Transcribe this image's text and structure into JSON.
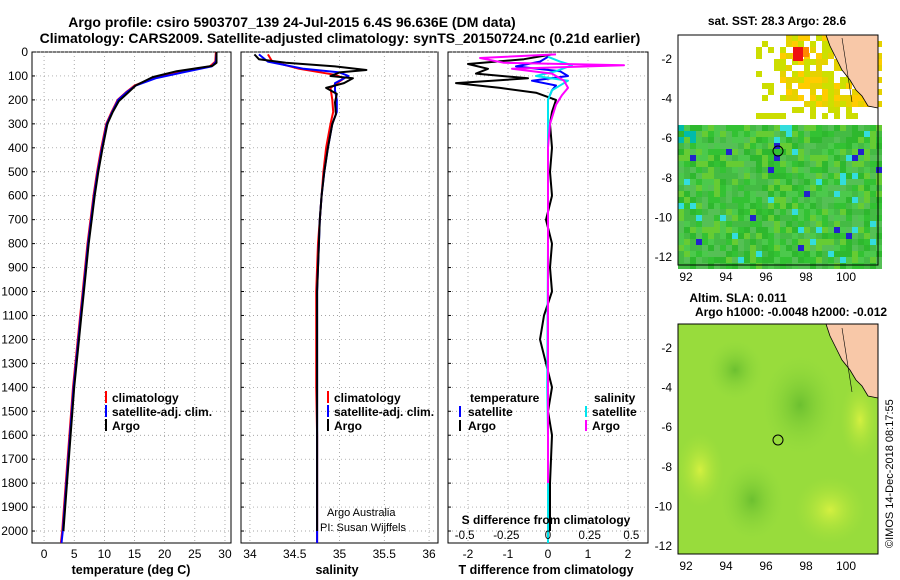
{
  "header": {
    "line1": "Argo profile: csiro 5903707_139 24-Jul-2015 6.4S 96.636E (DM data)",
    "line2": "Climatology: CARS2009. Satellite-adjusted climatology: synTS_20150724.nc (0.21d earlier)"
  },
  "colors": {
    "climatology": "#ff0000",
    "satellite": "#0000ff",
    "argo": "#000000",
    "sat_salinity": "#00e5ee",
    "argo_salinity": "#ff00ff"
  },
  "depth_axis": {
    "ticks": [
      "0",
      "100",
      "200",
      "300",
      "400",
      "500",
      "600",
      "700",
      "800",
      "900",
      "1000",
      "1100",
      "1200",
      "1300",
      "1400",
      "1500",
      "1600",
      "1700",
      "1800",
      "1900",
      "2000"
    ],
    "ylim": [
      0,
      2050
    ]
  },
  "panels": {
    "temperature": {
      "xlabel": "temperature (deg C)",
      "xticks": [
        "0",
        "5",
        "10",
        "15",
        "20",
        "25",
        "30"
      ],
      "legend": [
        "climatology",
        "satellite-adj. clim.",
        "Argo"
      ]
    },
    "salinity": {
      "xlabel": "salinity",
      "xticks": [
        "34",
        "34.5",
        "35",
        "35.5",
        "36"
      ],
      "legend": [
        "climatology",
        "satellite-adj. clim.",
        "Argo"
      ],
      "credit1": "Argo Australia",
      "credit2": "PI: Susan Wijffels"
    },
    "difference": {
      "xlabel": "T difference from climatology",
      "xticks": [
        "-2",
        "-1",
        "0",
        "1",
        "2"
      ],
      "s_caption": "S difference from climatology",
      "s_ticks": [
        "-0.5",
        "-0.25",
        "0",
        "0.25",
        "0.5"
      ],
      "legend_t_title": "temperature",
      "legend_s_title": "salinity",
      "legend_satellite": "satellite",
      "legend_argo": "Argo"
    }
  },
  "maps": {
    "sst_title": "sat. SST: 28.3 Argo: 28.6",
    "sla_title1": "Altim. SLA: 0.011",
    "sla_title2": "Argo h1000: -0.0048 h2000: -0.012",
    "xticks": [
      "92",
      "94",
      "96",
      "98",
      "100"
    ],
    "yticks": [
      "-2",
      "-4",
      "-6",
      "-8",
      "-10",
      "-12"
    ],
    "footer": "©IMOS 14-Dec-2018 08:17:55"
  },
  "chart_data": [
    {
      "type": "line",
      "title": "",
      "xlabel": "temperature (deg C)",
      "ylabel": "",
      "xlim": [
        -2,
        31
      ],
      "ylim": [
        0,
        2050
      ],
      "y_inverted": true,
      "series": [
        {
          "name": "climatology",
          "color": "#ff0000",
          "points": [
            [
              28.5,
              0
            ],
            [
              28.4,
              40
            ],
            [
              27.5,
              60
            ],
            [
              22,
              85
            ],
            [
              18,
              110
            ],
            [
              15,
              140
            ],
            [
              13.5,
              170
            ],
            [
              12.2,
              200
            ],
            [
              11.2,
              250
            ],
            [
              10.3,
              300
            ],
            [
              9.5,
              400
            ],
            [
              8.8,
              500
            ],
            [
              8.2,
              600
            ],
            [
              7.7,
              700
            ],
            [
              7.2,
              800
            ],
            [
              6.8,
              900
            ],
            [
              6.4,
              1000
            ],
            [
              6.0,
              1100
            ],
            [
              5.6,
              1200
            ],
            [
              5.2,
              1300
            ],
            [
              4.8,
              1400
            ],
            [
              4.5,
              1500
            ],
            [
              4.2,
              1600
            ],
            [
              3.9,
              1700
            ],
            [
              3.6,
              1800
            ],
            [
              3.3,
              1900
            ],
            [
              3.0,
              2000
            ],
            [
              2.8,
              2050
            ]
          ]
        },
        {
          "name": "satellite-adj. clim.",
          "color": "#0000ff",
          "points": [
            [
              28.6,
              0
            ],
            [
              28.5,
              40
            ],
            [
              27.8,
              60
            ],
            [
              23,
              85
            ],
            [
              18.5,
              110
            ],
            [
              15.2,
              140
            ],
            [
              13.6,
              170
            ],
            [
              12.3,
              200
            ],
            [
              11.3,
              250
            ],
            [
              10.4,
              300
            ],
            [
              9.6,
              400
            ],
            [
              8.9,
              500
            ],
            [
              8.3,
              600
            ],
            [
              7.8,
              700
            ],
            [
              7.3,
              800
            ],
            [
              6.9,
              900
            ],
            [
              6.5,
              1000
            ],
            [
              6.1,
              1100
            ],
            [
              5.7,
              1200
            ],
            [
              5.3,
              1300
            ],
            [
              4.9,
              1400
            ],
            [
              4.6,
              1500
            ],
            [
              4.3,
              1600
            ],
            [
              4.0,
              1700
            ],
            [
              3.7,
              1800
            ],
            [
              3.4,
              1900
            ],
            [
              3.1,
              2000
            ],
            [
              2.9,
              2050
            ]
          ]
        },
        {
          "name": "Argo",
          "color": "#000000",
          "points": [
            [
              28.6,
              0
            ],
            [
              28.6,
              45
            ],
            [
              27.9,
              58
            ],
            [
              22,
              80
            ],
            [
              18,
              105
            ],
            [
              15.2,
              140
            ],
            [
              13.7,
              175
            ],
            [
              12.4,
              205
            ],
            [
              11.4,
              250
            ],
            [
              10.5,
              300
            ],
            [
              9.7,
              400
            ],
            [
              9.0,
              500
            ],
            [
              8.4,
              600
            ],
            [
              7.9,
              700
            ],
            [
              7.4,
              800
            ],
            [
              7.0,
              900
            ],
            [
              6.6,
              1000
            ],
            [
              6.2,
              1100
            ],
            [
              5.8,
              1200
            ],
            [
              5.4,
              1300
            ],
            [
              5.0,
              1400
            ],
            [
              4.7,
              1500
            ],
            [
              4.4,
              1600
            ],
            [
              4.1,
              1700
            ],
            [
              3.8,
              1800
            ],
            [
              3.5,
              1900
            ],
            [
              3.2,
              2000
            ]
          ]
        }
      ]
    },
    {
      "type": "line",
      "title": "",
      "xlabel": "salinity",
      "ylabel": "",
      "xlim": [
        33.9,
        36.1
      ],
      "ylim": [
        0,
        2050
      ],
      "y_inverted": true,
      "series": [
        {
          "name": "climatology",
          "color": "#ff0000",
          "points": [
            [
              34.2,
              10
            ],
            [
              34.25,
              40
            ],
            [
              34.55,
              70
            ],
            [
              34.95,
              95
            ],
            [
              35.05,
              110
            ],
            [
              34.9,
              150
            ],
            [
              34.92,
              200
            ],
            [
              34.93,
              250
            ],
            [
              34.9,
              300
            ],
            [
              34.85,
              400
            ],
            [
              34.82,
              500
            ],
            [
              34.8,
              600
            ],
            [
              34.78,
              700
            ],
            [
              34.76,
              800
            ],
            [
              34.75,
              900
            ],
            [
              34.74,
              1000
            ],
            [
              34.74,
              1200
            ],
            [
              34.74,
              1400
            ],
            [
              34.75,
              1600
            ],
            [
              34.75,
              1800
            ],
            [
              34.75,
              2050
            ]
          ]
        },
        {
          "name": "satellite-adj. clim.",
          "color": "#0000ff",
          "points": [
            [
              34.1,
              10
            ],
            [
              34.2,
              40
            ],
            [
              34.6,
              70
            ],
            [
              35.0,
              85
            ],
            [
              35.1,
              100
            ],
            [
              34.95,
              130
            ],
            [
              34.95,
              160
            ],
            [
              34.97,
              200
            ],
            [
              34.97,
              250
            ],
            [
              34.92,
              300
            ],
            [
              34.87,
              400
            ],
            [
              34.83,
              500
            ],
            [
              34.8,
              600
            ],
            [
              34.78,
              700
            ],
            [
              34.77,
              800
            ],
            [
              34.76,
              900
            ],
            [
              34.75,
              1000
            ],
            [
              34.75,
              1200
            ],
            [
              34.75,
              1400
            ],
            [
              34.75,
              1600
            ],
            [
              34.75,
              1800
            ],
            [
              34.75,
              2050
            ]
          ]
        },
        {
          "name": "Argo",
          "color": "#000000",
          "points": [
            [
              34.05,
              10
            ],
            [
              34.1,
              30
            ],
            [
              34.4,
              45
            ],
            [
              34.95,
              60
            ],
            [
              35.3,
              75
            ],
            [
              35.0,
              85
            ],
            [
              34.9,
              100
            ],
            [
              35.15,
              110
            ],
            [
              35.05,
              130
            ],
            [
              34.85,
              150
            ],
            [
              34.97,
              175
            ],
            [
              34.95,
              210
            ],
            [
              34.96,
              260
            ],
            [
              34.92,
              300
            ],
            [
              34.87,
              400
            ],
            [
              34.83,
              500
            ],
            [
              34.8,
              600
            ],
            [
              34.78,
              700
            ],
            [
              34.77,
              800
            ],
            [
              34.76,
              900
            ],
            [
              34.75,
              1000
            ],
            [
              34.75,
              1200
            ],
            [
              34.75,
              1400
            ],
            [
              34.75,
              1600
            ],
            [
              34.75,
              1800
            ],
            [
              34.75,
              2000
            ]
          ]
        }
      ]
    },
    {
      "type": "line",
      "title": "",
      "xlabel": "T difference from climatology",
      "ylabel": "",
      "xlim": [
        -2.5,
        2.5
      ],
      "ylim": [
        0,
        2050
      ],
      "y_inverted": true,
      "series": [
        {
          "name": "temperature satellite",
          "color": "#0000ff",
          "points": [
            [
              0,
              20
            ],
            [
              -0.2,
              40
            ],
            [
              -0.8,
              60
            ],
            [
              0.3,
              80
            ],
            [
              0.5,
              100
            ],
            [
              -0.4,
              120
            ],
            [
              0.2,
              140
            ],
            [
              0.1,
              160
            ],
            [
              0,
              200
            ],
            [
              0,
              300
            ],
            [
              0,
              500
            ],
            [
              0,
              800
            ],
            [
              0,
              1200
            ],
            [
              0,
              1600
            ],
            [
              0,
              2050
            ]
          ]
        },
        {
          "name": "temperature Argo",
          "color": "#000000",
          "points": [
            [
              0.1,
              10
            ],
            [
              -0.6,
              30
            ],
            [
              -2.0,
              50
            ],
            [
              -1.5,
              70
            ],
            [
              -1.8,
              90
            ],
            [
              -0.5,
              110
            ],
            [
              -2.3,
              130
            ],
            [
              -1.2,
              150
            ],
            [
              -0.3,
              170
            ],
            [
              0.2,
              200
            ],
            [
              0.1,
              250
            ],
            [
              0.05,
              300
            ],
            [
              0.1,
              400
            ],
            [
              0.05,
              500
            ],
            [
              0.1,
              600
            ],
            [
              -0.05,
              700
            ],
            [
              0.1,
              800
            ],
            [
              0.05,
              900
            ],
            [
              0.1,
              1000
            ],
            [
              -0.1,
              1100
            ],
            [
              -0.2,
              1200
            ],
            [
              -0.05,
              1300
            ],
            [
              0.1,
              1400
            ],
            [
              0,
              1500
            ],
            [
              0.1,
              1600
            ],
            [
              0.05,
              1800
            ],
            [
              0.05,
              2000
            ]
          ]
        },
        {
          "name": "salinity satellite",
          "color": "#00e5ee",
          "points": [
            [
              0,
              20
            ],
            [
              0.3,
              40
            ],
            [
              0.6,
              55
            ],
            [
              0.2,
              80
            ],
            [
              -0.3,
              100
            ],
            [
              0.5,
              120
            ],
            [
              0.1,
              160
            ],
            [
              0,
              200
            ],
            [
              0,
              400
            ],
            [
              0,
              800
            ],
            [
              -0.02,
              1400
            ],
            [
              0,
              1600
            ],
            [
              0,
              2050
            ]
          ]
        },
        {
          "name": "salinity Argo",
          "color": "#ff00ff",
          "points": [
            [
              0.2,
              10
            ],
            [
              -1.7,
              25
            ],
            [
              -1.1,
              45
            ],
            [
              1.9,
              55
            ],
            [
              -0.9,
              70
            ],
            [
              0.1,
              90
            ],
            [
              0.4,
              120
            ],
            [
              0.5,
              150
            ],
            [
              0.35,
              180
            ],
            [
              0.2,
              220
            ],
            [
              0.05,
              300
            ],
            [
              0,
              400
            ],
            [
              0,
              600
            ],
            [
              0,
              800
            ],
            [
              0,
              1000
            ],
            [
              0,
              1200
            ],
            [
              0,
              1400
            ],
            [
              0,
              1600
            ],
            [
              0,
              1800
            ]
          ]
        }
      ]
    }
  ]
}
